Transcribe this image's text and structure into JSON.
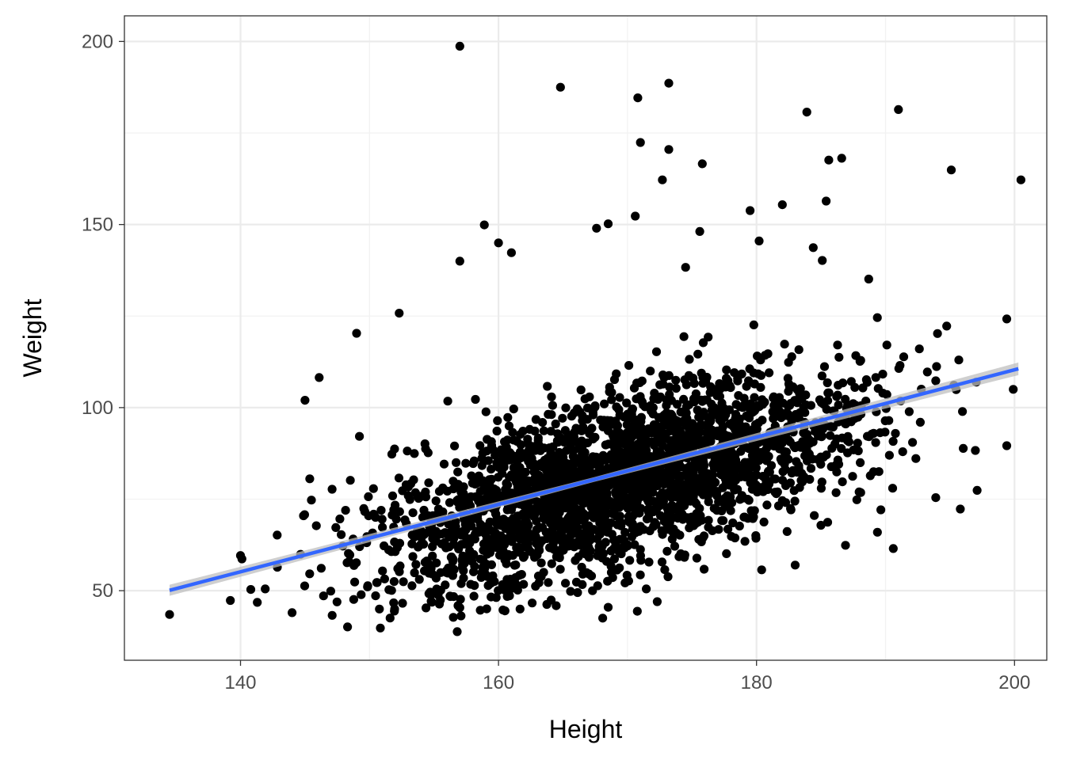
{
  "chart_data": {
    "type": "scatter",
    "title": "",
    "xlabel": "Height",
    "ylabel": "Weight",
    "xlim": [
      131,
      202.5
    ],
    "ylim": [
      31,
      207
    ],
    "x_ticks": [
      140,
      160,
      180,
      200
    ],
    "x_tick_labels": [
      "140",
      "160",
      "180",
      "200"
    ],
    "y_ticks": [
      50,
      100,
      150,
      200
    ],
    "y_tick_labels": [
      "50",
      "100",
      "150",
      "200"
    ],
    "grid": true,
    "legend": "none",
    "point_color": "#000000",
    "point_count": 2600,
    "trend_line": {
      "type": "linear",
      "color": "#3366ff",
      "confidence_band": true,
      "band_color": "#bfbfbf",
      "x": [
        134.5,
        200.3
      ],
      "y": [
        50.1,
        110.6
      ]
    },
    "series": [
      {
        "x": [
          157.0,
          164.8,
          170.8,
          173.2,
          171.0,
          183.9,
          191.0,
          173.2,
          175.8,
          172.7,
          186.6,
          185.6,
          195.1,
          200.5,
          185.4,
          182.0,
          179.5,
          170.6,
          158.9,
          168.5,
          167.6,
          175.6,
          160.0,
          161.0,
          157.0,
          180.2,
          184.4,
          185.1,
          174.5,
          188.7,
          199.4,
          152.3,
          149.0,
          145.0,
          146.1,
          199.9,
          199.4,
          195.8,
          197.1,
          140.0,
          134.5,
          141.3,
          144.0,
          148.3,
          190.6,
          186.9,
          172.3,
          183.0,
          156.8,
          160.5
        ],
        "y": [
          198.7,
          187.5,
          184.6,
          188.6,
          172.4,
          180.7,
          181.4,
          170.5,
          166.6,
          162.2,
          168.1,
          167.6,
          164.9,
          162.2,
          156.4,
          155.4,
          153.8,
          152.3,
          149.9,
          150.2,
          149.0,
          148.1,
          145.0,
          142.3,
          140.0,
          145.5,
          143.7,
          140.2,
          138.3,
          135.1,
          124.2,
          125.8,
          120.3,
          102.0,
          108.2,
          105.0,
          89.6,
          72.3,
          77.4,
          59.6,
          43.5,
          46.8,
          44.0,
          40.1,
          61.5,
          62.4,
          47.0,
          57.0,
          38.8,
          44.5
        ]
      }
    ]
  }
}
